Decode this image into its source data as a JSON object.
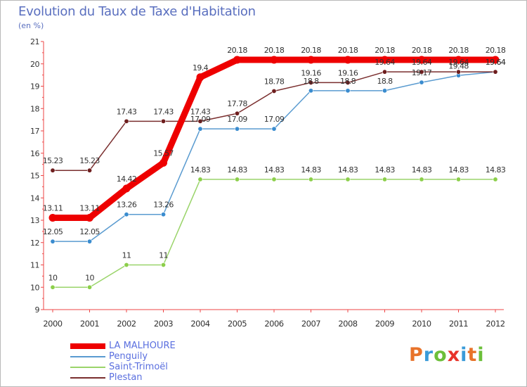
{
  "header": {
    "title": "Evolution du Taux de Taxe d'Habitation",
    "unit": "(en %)"
  },
  "brand": {
    "text": "Proxiti",
    "colors": [
      "#e8732a",
      "#3a9bd9",
      "#6cbf3a",
      "#e8332a",
      "#3a9bd9",
      "#e8732a",
      "#6cbf3a"
    ]
  },
  "chart_data": {
    "type": "line",
    "title": "Evolution du Taux de Taxe d'Habitation",
    "subtitle": "(en %)",
    "xlabel": "",
    "ylabel": "",
    "x": [
      "2000",
      "2001",
      "2002",
      "2003",
      "2004",
      "2005",
      "2006",
      "2007",
      "2008",
      "2009",
      "2010",
      "2011",
      "2012"
    ],
    "ylim": [
      9,
      21
    ],
    "yticks": [
      9,
      10,
      11,
      12,
      13,
      14,
      15,
      16,
      17,
      18,
      19,
      20,
      21
    ],
    "grid": false,
    "legend": "bottom-left",
    "series": [
      {
        "name": "LA MALHOURE",
        "color": "#ee0000",
        "values": [
          13.11,
          13.11,
          14.42,
          15.57,
          19.4,
          20.18,
          20.18,
          20.18,
          20.18,
          20.18,
          20.18,
          20.18,
          20.18
        ],
        "labels": [
          "13.11",
          "13.11",
          "14.42",
          "15.57",
          "19.4",
          "20.18",
          "20.18",
          "20.18",
          "20.18",
          "20.18",
          "20.18",
          "20.18",
          "20.18"
        ]
      },
      {
        "name": "Penguily",
        "color": "#5a9bd0",
        "values": [
          12.05,
          12.05,
          13.26,
          13.26,
          17.09,
          17.09,
          17.09,
          18.8,
          18.8,
          18.8,
          19.17,
          19.48,
          19.64
        ],
        "labels": [
          "12.05",
          "12.05",
          "13.26",
          "13.26",
          "17.09",
          "17.09",
          "17.09",
          "18.8",
          "18.8",
          "18.8",
          "19.17",
          "19.48",
          "19.64"
        ]
      },
      {
        "name": "Saint-Trimoël",
        "color": "#9ad46a",
        "values": [
          10,
          10,
          11,
          11,
          14.83,
          14.83,
          14.83,
          14.83,
          14.83,
          14.83,
          14.83,
          14.83,
          14.83
        ],
        "labels": [
          "10",
          "10",
          "11",
          "11",
          "14.83",
          "14.83",
          "14.83",
          "14.83",
          "14.83",
          "14.83",
          "14.83",
          "14.83",
          "14.83"
        ]
      },
      {
        "name": "Plestan",
        "color": "#7a2e2e",
        "values": [
          15.23,
          15.23,
          17.43,
          17.43,
          17.43,
          17.78,
          18.78,
          19.16,
          19.16,
          19.64,
          19.64,
          19.64,
          19.64
        ],
        "labels": [
          "15.23",
          "15.23",
          "17.43",
          "17.43",
          "17.43",
          "17.78",
          "18.78",
          "19.16",
          "19.16",
          "19.64",
          "19.64",
          "19.64",
          "19.64"
        ]
      }
    ]
  }
}
